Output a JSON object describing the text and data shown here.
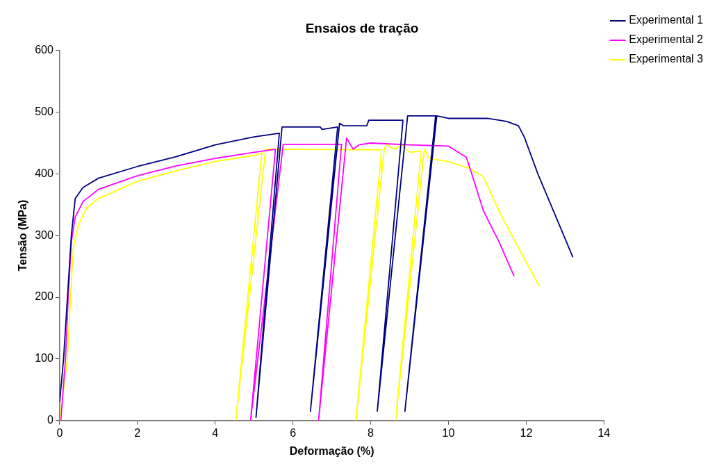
{
  "chart_data": {
    "type": "line",
    "title": "Ensaios de tração",
    "xlabel": "Deformação (%)",
    "ylabel": "Tensão (MPa)",
    "xlim": [
      0,
      14
    ],
    "xticks": [
      0,
      2,
      4,
      6,
      8,
      10,
      12,
      14
    ],
    "ylim": [
      0,
      600
    ],
    "yticks": [
      0,
      100,
      200,
      300,
      400,
      500,
      600
    ],
    "grid": false,
    "legend": "top right",
    "marker": "none",
    "line_style": "solid",
    "series": [
      {
        "name": "Experimental 1",
        "color": "#000080",
        "x": [
          0,
          0.1,
          0.2,
          0.3,
          0.4,
          0.6,
          1,
          2,
          3,
          4,
          5,
          5.65,
          5.05,
          5.72,
          6.7,
          6.75,
          7.15,
          6.45,
          7.2,
          7.3,
          7.9,
          7.95,
          8.83,
          8.17,
          8.95,
          9.67,
          8.88,
          9.7,
          10,
          11,
          11.5,
          11.8,
          11.95,
          12.3,
          12.7,
          13.2
        ],
        "values": [
          30,
          100,
          200,
          300,
          360,
          378,
          393,
          412,
          428,
          447,
          460,
          466,
          5,
          476,
          476,
          472,
          476,
          15,
          482,
          478,
          478,
          487,
          487,
          15,
          494,
          494,
          15,
          494,
          490,
          490,
          485,
          478,
          460,
          400,
          340,
          265
        ]
      },
      {
        "name": "Experimental 2",
        "color": "#ff00ff",
        "x": [
          0.03,
          0.15,
          0.22,
          0.3,
          0.4,
          0.6,
          1,
          2,
          3,
          4,
          5,
          5.55,
          4.91,
          5.75,
          7.25,
          6.66,
          7.38,
          7.55,
          7.7,
          8,
          9,
          10,
          10.46,
          10.6,
          10.9,
          11.3,
          11.69
        ],
        "values": [
          0,
          100,
          200,
          290,
          330,
          355,
          375,
          397,
          413,
          425,
          435,
          440,
          0,
          448,
          448,
          0,
          458,
          440,
          447,
          450,
          447,
          445,
          427,
          400,
          340,
          290,
          234
        ]
      },
      {
        "name": "Experimental 3",
        "color": "#ffff00",
        "x": [
          0,
          0.2,
          0.28,
          0.35,
          0.5,
          0.7,
          1,
          2,
          3,
          4,
          5,
          5.2,
          4.53,
          5.3,
          8.28,
          7.62,
          8.35,
          8.4,
          8.6,
          8.8,
          9,
          9.3,
          8.64,
          9.38,
          9.5,
          10,
          10.5,
          10.9,
          11.3,
          11.8,
          12.34
        ],
        "values": [
          0,
          100,
          200,
          280,
          320,
          345,
          360,
          388,
          405,
          420,
          430,
          434,
          0,
          440,
          439,
          0,
          440,
          448,
          440,
          447,
          435,
          437,
          0,
          440,
          425,
          420,
          410,
          395,
          340,
          280,
          218
        ]
      }
    ]
  }
}
